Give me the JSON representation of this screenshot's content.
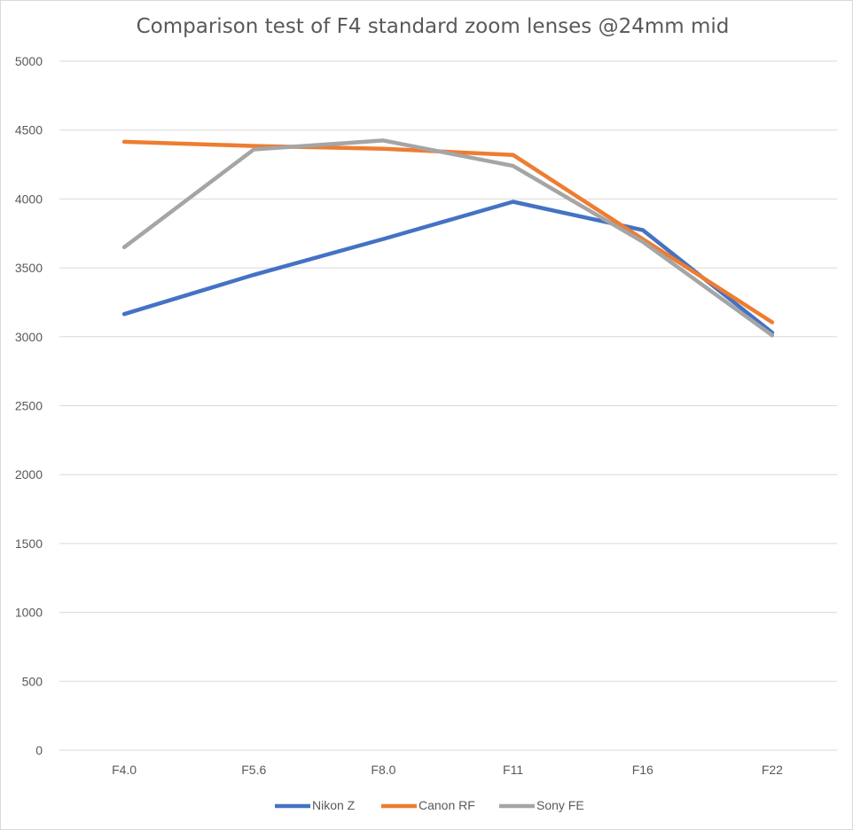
{
  "chart_data": {
    "type": "line",
    "title": "Comparison test of F4 standard zoom lenses @24mm mid",
    "xlabel": "",
    "ylabel": "",
    "categories": [
      "F4.0",
      "F5.6",
      "F8.0",
      "F11",
      "F16",
      "F22"
    ],
    "ylim": [
      0,
      5000
    ],
    "yticks": [
      0,
      500,
      1000,
      1500,
      2000,
      2500,
      3000,
      3500,
      4000,
      4500,
      5000
    ],
    "grid": true,
    "legend_position": "bottom",
    "series": [
      {
        "name": "Nikon Z",
        "color": "#4472c4",
        "values": [
          3165,
          3450,
          3710,
          3980,
          3775,
          3030
        ]
      },
      {
        "name": "Canon RF",
        "color": "#ed7d31",
        "values": [
          4415,
          4385,
          4365,
          4320,
          3710,
          3105
        ]
      },
      {
        "name": "Sony FE",
        "color": "#a5a5a5",
        "values": [
          3650,
          4360,
          4425,
          4240,
          3690,
          3010
        ]
      }
    ]
  }
}
